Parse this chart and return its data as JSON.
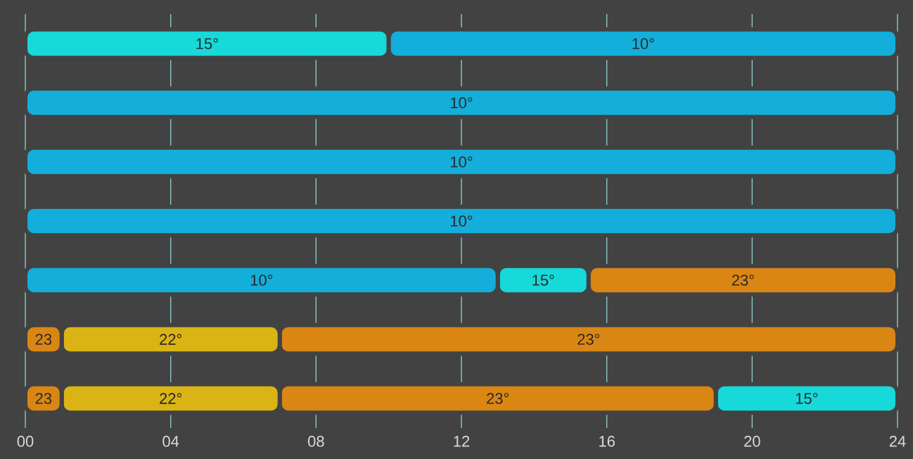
{
  "chart_data": {
    "type": "bar",
    "orientation": "horizontal",
    "categories": [
      null,
      null,
      null,
      null,
      null,
      null,
      null
    ],
    "series": [
      {
        "name": "15°",
        "color": "#17d9d9",
        "values": [
          10,
          null,
          null,
          null,
          2.5,
          null,
          5
        ],
        "base": [
          0,
          null,
          null,
          null,
          13,
          null,
          19
        ]
      },
      {
        "name": "10°",
        "color": "#14aedb",
        "values": [
          14,
          24,
          24,
          24,
          13,
          null,
          null
        ],
        "base": [
          10,
          0,
          0,
          0,
          0,
          null,
          null
        ]
      },
      {
        "name": "23°",
        "color": "#da8614",
        "values": [
          null,
          null,
          null,
          null,
          8.5,
          17,
          12
        ],
        "base": [
          null,
          null,
          null,
          null,
          15.5,
          7,
          7
        ]
      },
      {
        "name": "22°",
        "color": "#dab414",
        "values": [
          null,
          null,
          null,
          null,
          null,
          6,
          6
        ],
        "base": [
          null,
          null,
          null,
          null,
          null,
          1,
          1
        ]
      },
      {
        "name": "23",
        "color": "#da8614",
        "values": [
          null,
          null,
          null,
          null,
          null,
          1,
          1
        ],
        "base": [
          null,
          null,
          null,
          null,
          null,
          0,
          0
        ]
      }
    ],
    "xlim": [
      0,
      24
    ],
    "xticks": [
      {
        "value": 0,
        "label": "00"
      },
      {
        "value": 4,
        "label": "04"
      },
      {
        "value": 8,
        "label": "08"
      },
      {
        "value": 12,
        "label": "12"
      },
      {
        "value": 16,
        "label": "16"
      },
      {
        "value": 20,
        "label": "20"
      },
      {
        "value": 24,
        "label": "24"
      }
    ],
    "grid": "x",
    "tick_labels": "x"
  }
}
